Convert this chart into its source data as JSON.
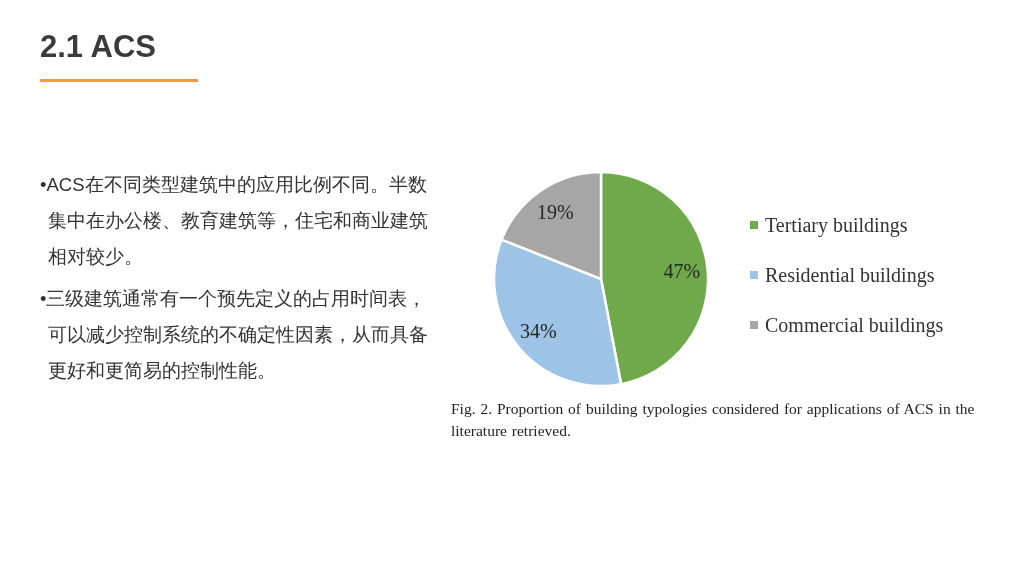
{
  "chart_data": {
    "type": "pie",
    "title": "2.1 ACS",
    "categories": [
      "Tertiary buildings",
      "Residential buildings",
      "Commercial buildings"
    ],
    "values": [
      47,
      34,
      19
    ],
    "colors": [
      "#6fa94a",
      "#9dc3e6",
      "#a6a6a6"
    ],
    "value_labels": [
      "47%",
      "34%",
      "19%"
    ],
    "legend": "right",
    "annotations": [
      "•ACS在不同类型建筑中的应用比例不同。半数集中在办公楼、教育建筑等，住宅和商业建筑相对较少。",
      "•三级建筑通常有一个预先定义的占用时间表，可以减少控制系统的不确定性因素，从而具备更好和更简易的控制性能。",
      "Fig. 2. Proportion of building typologies considered for applications of ACS in the literature retrieved."
    ]
  }
}
